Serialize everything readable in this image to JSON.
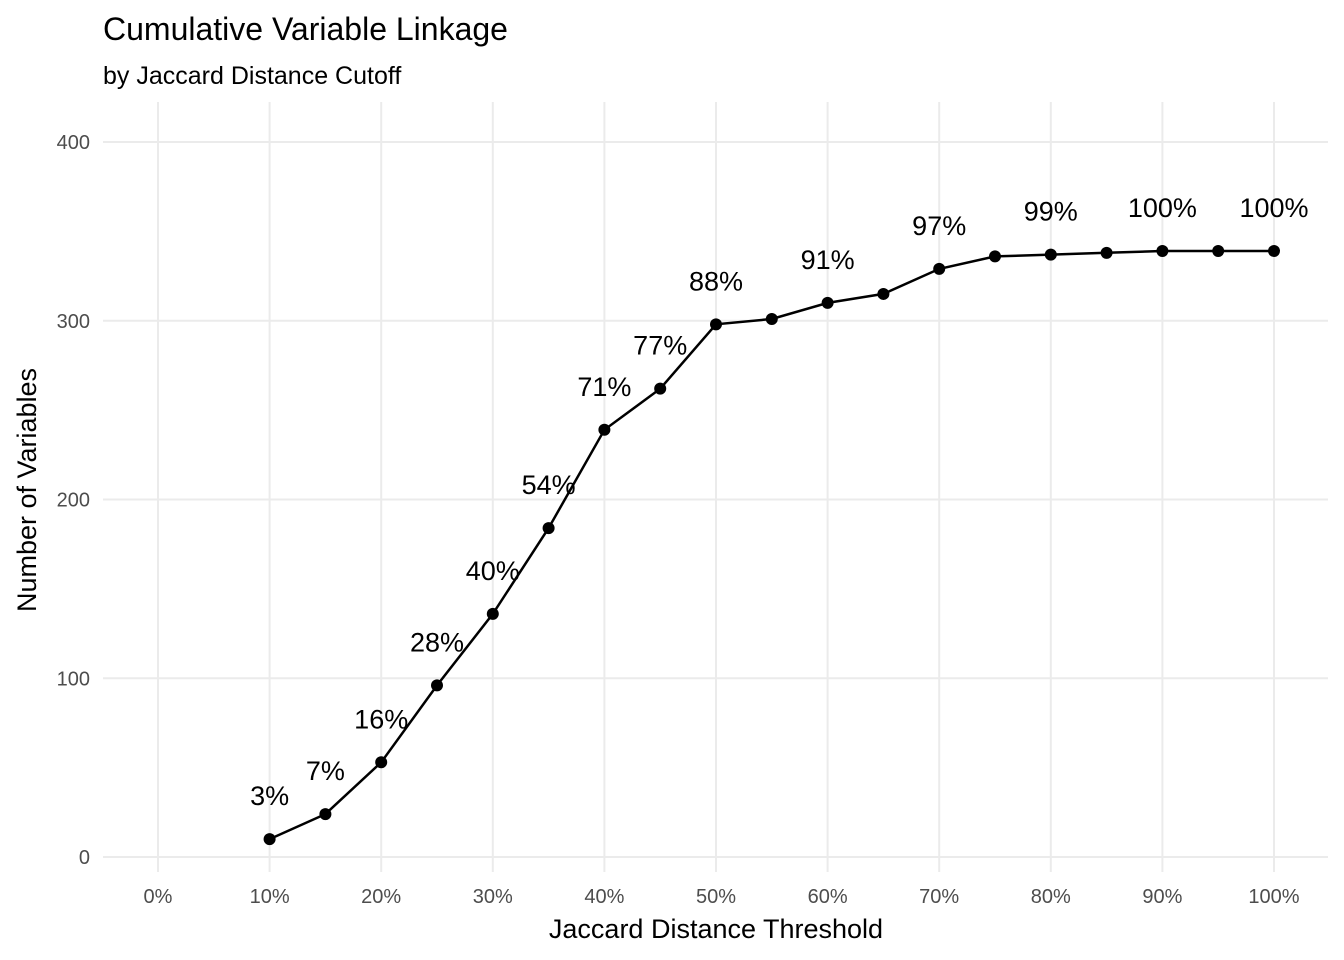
{
  "chart_data": {
    "type": "line",
    "title": "Cumulative Variable Linkage",
    "subtitle": "by Jaccard Distance Cutoff",
    "xlabel": "Jaccard Distance Threshold",
    "ylabel": "Number of Variables",
    "xlim": [
      0,
      100
    ],
    "ylim": [
      0,
      400
    ],
    "x_ticks": [
      "0%",
      "10%",
      "20%",
      "30%",
      "40%",
      "50%",
      "60%",
      "70%",
      "80%",
      "90%",
      "100%"
    ],
    "y_ticks": [
      "0",
      "100",
      "200",
      "300",
      "400"
    ],
    "grid": true,
    "legend": "none",
    "line_color": "#000000",
    "x": [
      10,
      15,
      20,
      25,
      30,
      35,
      40,
      45,
      50,
      55,
      60,
      65,
      70,
      75,
      80,
      85,
      90,
      95,
      100
    ],
    "y": [
      10,
      24,
      53,
      96,
      136,
      184,
      239,
      262,
      298,
      301,
      310,
      315,
      329,
      336,
      337,
      338,
      339,
      339,
      339
    ],
    "annotations": [
      {
        "x": 10,
        "y": 10,
        "label": "3%"
      },
      {
        "x": 15,
        "y": 24,
        "label": "7%"
      },
      {
        "x": 20,
        "y": 53,
        "label": "16%"
      },
      {
        "x": 25,
        "y": 96,
        "label": "28%"
      },
      {
        "x": 30,
        "y": 136,
        "label": "40%"
      },
      {
        "x": 35,
        "y": 184,
        "label": "54%"
      },
      {
        "x": 40,
        "y": 239,
        "label": "71%"
      },
      {
        "x": 45,
        "y": 262,
        "label": "77%"
      },
      {
        "x": 50,
        "y": 298,
        "label": "88%"
      },
      {
        "x": 60,
        "y": 310,
        "label": "91%"
      },
      {
        "x": 70,
        "y": 329,
        "label": "97%"
      },
      {
        "x": 80,
        "y": 337,
        "label": "99%"
      },
      {
        "x": 90,
        "y": 339,
        "label": "100%"
      },
      {
        "x": 100,
        "y": 339,
        "label": "100%"
      }
    ]
  }
}
